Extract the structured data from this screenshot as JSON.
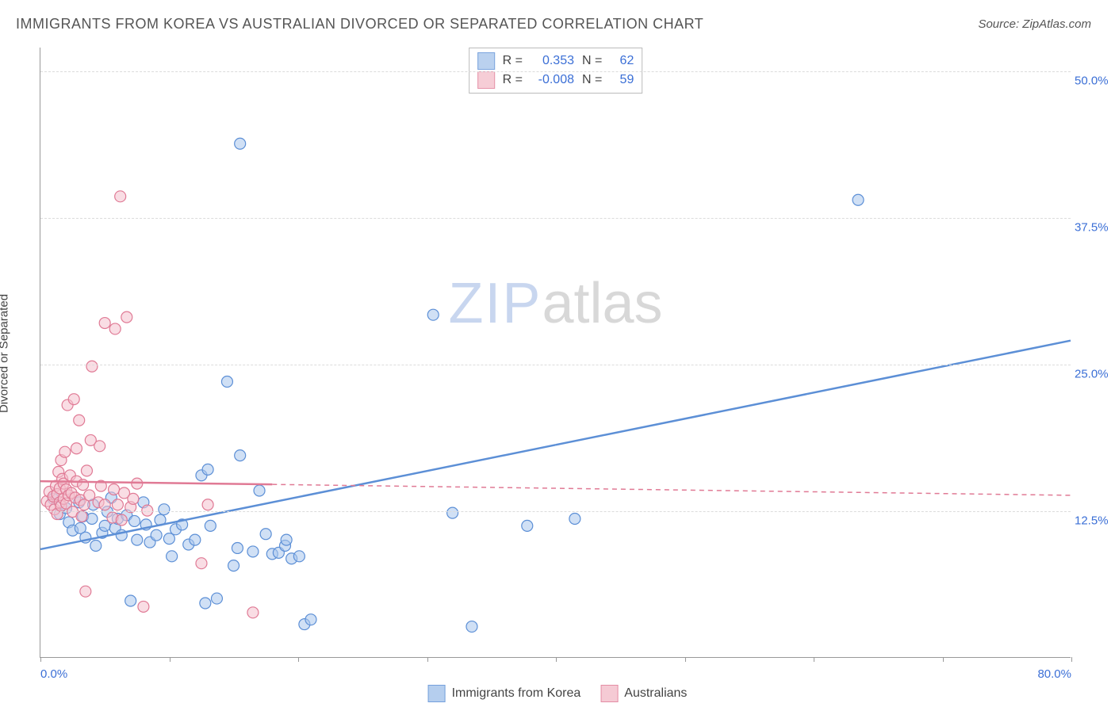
{
  "title": "IMMIGRANTS FROM KOREA VS AUSTRALIAN DIVORCED OR SEPARATED CORRELATION CHART",
  "source": "Source: ZipAtlas.com",
  "ylabel": "Divorced or Separated",
  "watermark_a": "ZIP",
  "watermark_b": "atlas",
  "chart": {
    "type": "scatter-correlation",
    "background_color": "#ffffff",
    "grid_color": "#dcdcdc",
    "axis_color": "#999999",
    "text_color": "#555555",
    "value_color": "#3b6fd6",
    "xlim": [
      0,
      80
    ],
    "ylim": [
      0,
      52
    ],
    "xticks": [
      0,
      10,
      20,
      30,
      40,
      50,
      60,
      70,
      80
    ],
    "xtick_labels": {
      "0": "0.0%",
      "80": "80.0%"
    },
    "ygrid": [
      12.5,
      25.0,
      37.5,
      50.0
    ],
    "ytick_labels": [
      "12.5%",
      "25.0%",
      "37.5%",
      "50.0%"
    ],
    "marker_radius": 7,
    "marker_stroke_width": 1.2,
    "regression_width_solid": 2.5,
    "regression_width_dash": 1.5
  },
  "series": [
    {
      "name": "Immigrants from Korea",
      "fill": "#a9c6ec",
      "stroke": "#5c8fd6",
      "fill_opacity": 0.55,
      "R": "0.353",
      "N": "62",
      "regression": {
        "x1": 0,
        "y1": 9.2,
        "x2": 80,
        "y2": 27.0,
        "dash": null,
        "solid_until_x": 40
      },
      "points": [
        [
          1,
          13.5
        ],
        [
          1.5,
          12.2
        ],
        [
          2,
          12.7
        ],
        [
          2.2,
          11.5
        ],
        [
          2.5,
          10.8
        ],
        [
          3,
          13.2
        ],
        [
          3.1,
          11.0
        ],
        [
          3.3,
          12.0
        ],
        [
          3.5,
          10.2
        ],
        [
          4,
          11.8
        ],
        [
          4.1,
          13.0
        ],
        [
          4.3,
          9.5
        ],
        [
          4.8,
          10.6
        ],
        [
          5,
          11.2
        ],
        [
          5.2,
          12.4
        ],
        [
          5.5,
          13.6
        ],
        [
          5.8,
          11.0
        ],
        [
          6,
          11.8
        ],
        [
          6.3,
          10.4
        ],
        [
          6.7,
          12.1
        ],
        [
          7,
          4.8
        ],
        [
          7.3,
          11.6
        ],
        [
          7.5,
          10.0
        ],
        [
          8,
          13.2
        ],
        [
          8.2,
          11.3
        ],
        [
          8.5,
          9.8
        ],
        [
          9,
          10.4
        ],
        [
          9.3,
          11.7
        ],
        [
          9.6,
          12.6
        ],
        [
          10,
          10.1
        ],
        [
          10.2,
          8.6
        ],
        [
          10.5,
          10.9
        ],
        [
          11,
          11.3
        ],
        [
          11.5,
          9.6
        ],
        [
          12,
          10.0
        ],
        [
          12.5,
          15.5
        ],
        [
          12.8,
          4.6
        ],
        [
          13,
          16.0
        ],
        [
          13.2,
          11.2
        ],
        [
          13.7,
          5.0
        ],
        [
          14.5,
          23.5
        ],
        [
          15,
          7.8
        ],
        [
          15.3,
          9.3
        ],
        [
          15.5,
          17.2
        ],
        [
          16.5,
          9.0
        ],
        [
          17.0,
          14.2
        ],
        [
          17.5,
          10.5
        ],
        [
          18,
          8.8
        ],
        [
          18.5,
          8.9
        ],
        [
          19.0,
          9.5
        ],
        [
          19.1,
          10.0
        ],
        [
          19.5,
          8.4
        ],
        [
          20.1,
          8.6
        ],
        [
          20.5,
          2.8
        ],
        [
          21.0,
          3.2
        ],
        [
          15.5,
          43.8
        ],
        [
          30.5,
          29.2
        ],
        [
          32,
          12.3
        ],
        [
          33.5,
          2.6
        ],
        [
          37.8,
          11.2
        ],
        [
          41.5,
          11.8
        ],
        [
          63.5,
          39.0
        ]
      ]
    },
    {
      "name": "Australians",
      "fill": "#f4c1cd",
      "stroke": "#e07a95",
      "fill_opacity": 0.55,
      "R": "-0.008",
      "N": "59",
      "regression": {
        "x1": 0,
        "y1": 15.0,
        "x2": 80,
        "y2": 13.8,
        "dash": "6 5",
        "solid_until_x": 18
      },
      "points": [
        [
          0.5,
          13.3
        ],
        [
          0.7,
          14.1
        ],
        [
          0.8,
          13.0
        ],
        [
          1.0,
          13.7
        ],
        [
          1.1,
          12.6
        ],
        [
          1.2,
          14.6
        ],
        [
          1.3,
          13.9
        ],
        [
          1.3,
          12.2
        ],
        [
          1.4,
          15.8
        ],
        [
          1.5,
          13.2
        ],
        [
          1.5,
          14.4
        ],
        [
          1.6,
          16.8
        ],
        [
          1.6,
          12.9
        ],
        [
          1.7,
          15.2
        ],
        [
          1.8,
          13.5
        ],
        [
          1.8,
          14.8
        ],
        [
          1.9,
          17.5
        ],
        [
          2.0,
          13.1
        ],
        [
          2.0,
          14.3
        ],
        [
          2.1,
          21.5
        ],
        [
          2.2,
          13.8
        ],
        [
          2.3,
          15.5
        ],
        [
          2.4,
          14.0
        ],
        [
          2.5,
          12.4
        ],
        [
          2.6,
          22.0
        ],
        [
          2.7,
          13.6
        ],
        [
          2.8,
          15.0
        ],
        [
          2.8,
          17.8
        ],
        [
          3.0,
          20.2
        ],
        [
          3.1,
          13.4
        ],
        [
          3.2,
          12.0
        ],
        [
          3.3,
          14.7
        ],
        [
          3.4,
          13.0
        ],
        [
          3.5,
          5.6
        ],
        [
          3.6,
          15.9
        ],
        [
          3.8,
          13.8
        ],
        [
          3.9,
          18.5
        ],
        [
          4.0,
          24.8
        ],
        [
          4.5,
          13.2
        ],
        [
          4.6,
          18.0
        ],
        [
          4.7,
          14.6
        ],
        [
          5.0,
          13.0
        ],
        [
          5.0,
          28.5
        ],
        [
          5.6,
          11.9
        ],
        [
          5.7,
          14.3
        ],
        [
          5.8,
          28.0
        ],
        [
          6.0,
          13.0
        ],
        [
          6.2,
          39.3
        ],
        [
          6.3,
          11.7
        ],
        [
          6.5,
          14.0
        ],
        [
          6.7,
          29.0
        ],
        [
          7.0,
          12.8
        ],
        [
          7.2,
          13.5
        ],
        [
          7.5,
          14.8
        ],
        [
          8.0,
          4.3
        ],
        [
          8.3,
          12.5
        ],
        [
          12.5,
          8.0
        ],
        [
          13.0,
          13.0
        ],
        [
          16.5,
          3.8
        ]
      ]
    }
  ],
  "stats_legend_labels": {
    "R": "R =",
    "N": "N ="
  },
  "bottom_legend": [
    "Immigrants from Korea",
    "Australians"
  ]
}
